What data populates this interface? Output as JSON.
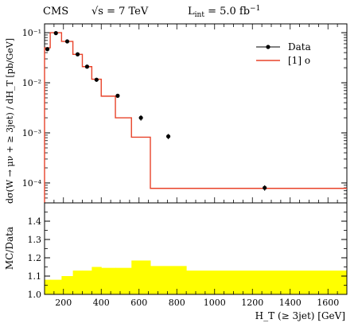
{
  "header": {
    "experiment": "CMS",
    "energy": "√s = 7 TeV",
    "lumi": "L",
    "lumi_sub": "int",
    "lumi_rest": " = 5.0 fb",
    "lumi_sup": "−1"
  },
  "colors": {
    "mc_line": "#e8432a",
    "ratio_band": "#ffff00",
    "data_marker": "#000000"
  },
  "chart_data": [
    {
      "type": "line",
      "panel": "main",
      "ylabel": "dσ(W → μν + ≥ 3jet) / dH_T [pb/GeV]",
      "yscale": "log",
      "ylim": [
        4e-05,
        0.15
      ],
      "xlim": [
        100,
        1700
      ],
      "y_tick_labels": [
        "10⁻¹",
        "10⁻²",
        "10⁻³",
        "10⁻⁴"
      ],
      "legend": {
        "position": "top-right",
        "entries": [
          "Data",
          "[1] o"
        ]
      },
      "bin_edges": [
        100,
        130,
        190,
        250,
        300,
        350,
        400,
        475,
        560,
        660,
        850,
        1700
      ],
      "series": [
        {
          "name": "Data",
          "style": "points",
          "x": [
            115,
            160,
            220,
            275,
            325,
            375,
            487,
            610,
            755,
            1265
          ],
          "y": [
            0.047,
            0.098,
            0.067,
            0.037,
            0.021,
            0.0115,
            0.0055,
            0.002,
            0.00085,
            8e-05
          ],
          "yerr": [
            0.004,
            0.006,
            0.004,
            0.003,
            0.0016,
            0.001,
            0.0004,
            0.00025,
            0.0001,
            1e-05
          ]
        },
        {
          "name": "[1] o",
          "style": "step",
          "values": [
            0.05,
            0.1,
            0.067,
            0.037,
            0.021,
            0.0118,
            0.0054,
            0.002,
            0.00082,
            7.8e-05,
            7.8e-05
          ]
        }
      ]
    },
    {
      "type": "area",
      "panel": "ratio",
      "xlabel": "H_T (≥ 3jet) [GeV]",
      "ylabel": "MC/Data",
      "ylim": [
        1.0,
        1.5
      ],
      "xlim": [
        100,
        1700
      ],
      "x_ticks": [
        200,
        400,
        600,
        800,
        1000,
        1200,
        1400,
        1600
      ],
      "y_ticks": [
        1.0,
        1.1,
        1.2,
        1.3,
        1.4
      ],
      "bin_edges": [
        100,
        130,
        190,
        250,
        300,
        350,
        400,
        475,
        560,
        660,
        850,
        1700
      ],
      "band_values": [
        1.08,
        1.08,
        1.1,
        1.13,
        1.13,
        1.15,
        1.145,
        1.145,
        1.185,
        1.155,
        1.13,
        1.13
      ]
    }
  ]
}
